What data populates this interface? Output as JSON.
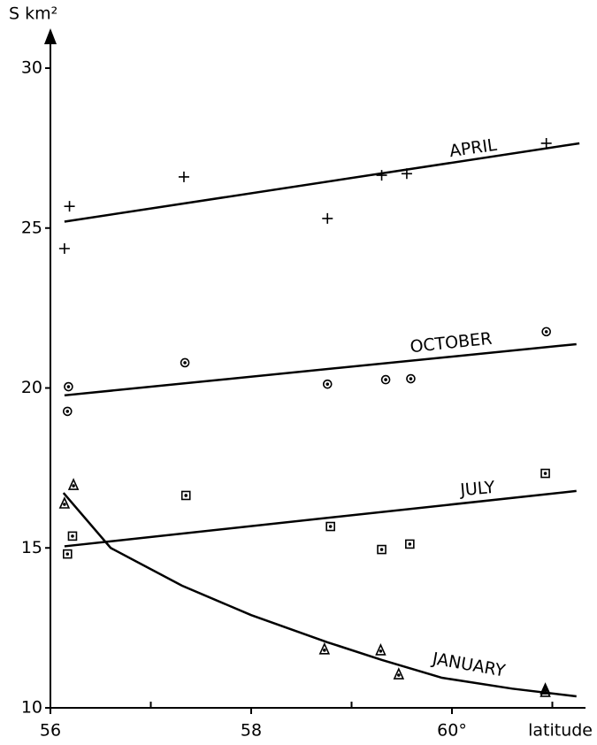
{
  "chart_data": {
    "type": "scatter",
    "x_label": "latitude",
    "y_label": "S km²",
    "xlim": [
      56,
      61.3
    ],
    "ylim": [
      10,
      31.2
    ],
    "xticks": [
      56,
      58,
      {
        "value": 60,
        "label": "60°"
      }
    ],
    "xminor_ticks": [
      57,
      59,
      61
    ],
    "yticks": [
      10,
      15,
      20,
      25,
      30
    ],
    "series": [
      {
        "name": "APRIL",
        "marker": "plus",
        "color": "#000",
        "x": [
          56.14,
          56.19,
          57.33,
          58.76,
          59.3,
          59.55,
          60.94
        ],
        "values": [
          24.36,
          25.68,
          26.6,
          25.3,
          26.65,
          26.7,
          27.65
        ],
        "fit_x": [
          56.14,
          61.27
        ],
        "fit_values": [
          25.2,
          27.65
        ]
      },
      {
        "name": "OCTOBER",
        "marker": "circle-dot",
        "color": "#000",
        "x": [
          56.18,
          56.17,
          57.34,
          58.76,
          59.34,
          59.59,
          60.94
        ],
        "values": [
          20.04,
          19.27,
          20.79,
          20.12,
          20.26,
          20.29,
          21.76
        ],
        "fit_x": [
          56.14,
          61.24
        ],
        "fit_values": [
          19.77,
          21.37
        ]
      },
      {
        "name": "JULY",
        "marker": "square-dot",
        "color": "#000",
        "x": [
          56.17,
          56.22,
          57.35,
          58.79,
          59.3,
          59.58,
          60.93
        ],
        "values": [
          14.81,
          15.37,
          16.64,
          15.67,
          14.95,
          15.12,
          17.33
        ],
        "fit_x": [
          56.14,
          61.24
        ],
        "fit_values": [
          15.05,
          16.78
        ]
      },
      {
        "name": "JANUARY",
        "marker": "triangle",
        "color": "#000",
        "x": [
          56.14,
          56.23,
          58.73,
          59.29,
          59.47,
          60.93,
          60.93
        ],
        "values": [
          16.39,
          16.97,
          11.83,
          11.8,
          11.05,
          10.5,
          10.58
        ],
        "fit_x": [
          56.13,
          56.6,
          57.31,
          58.0,
          58.76,
          59.3,
          59.9,
          60.6,
          61.24
        ],
        "fit_values": [
          16.72,
          15.0,
          13.82,
          12.9,
          12.05,
          11.5,
          10.94,
          10.6,
          10.36
        ]
      }
    ]
  }
}
